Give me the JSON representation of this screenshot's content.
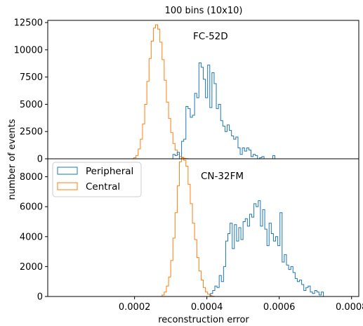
{
  "chart_data": {
    "type": "histogram",
    "title": "100 bins (10x10)",
    "xlabel": "reconstruction error",
    "ylabel": "number of events",
    "xlim": [
      -4e-05,
      0.00082
    ],
    "xticks": [
      0.0002,
      0.0004,
      0.0006,
      0.0008
    ],
    "xtick_labels": [
      "0.0002",
      "0.0004",
      "0.0006",
      "0.0008"
    ],
    "grid": false,
    "legend": {
      "placement": "top-left of lower panel",
      "entries": [
        {
          "name": "Peripheral",
          "color": "#1f77b4"
        },
        {
          "name": "Central",
          "color": "#ff7f0e"
        }
      ]
    },
    "bin_width": 6e-06,
    "panels": [
      {
        "label": "FC-52D",
        "ylim": [
          0,
          12700
        ],
        "yticks": [
          0,
          2500,
          5000,
          7500,
          10000,
          12500
        ],
        "series": [
          {
            "name": "Peripheral",
            "color": "#1f77b4",
            "x0": 0.000306,
            "values": [
              400,
              300,
              600,
              0,
              1600,
              1800,
              4800,
              4600,
              3800,
              4000,
              6000,
              5600,
              8800,
              8400,
              7300,
              5600,
              8600,
              4700,
              7900,
              6900,
              4600,
              5000,
              3500,
              3000,
              2500,
              3100,
              2600,
              2100,
              1800,
              2000,
              1000,
              400,
              1000,
              700,
              1000,
              800,
              200,
              400,
              300,
              0,
              100,
              200,
              0,
              0,
              0,
              0,
              300,
              0
            ]
          },
          {
            "name": "Central",
            "color": "#ff7f0e",
            "x0": 0.000198,
            "values": [
              100,
              300,
              900,
              1800,
              3200,
              5000,
              7100,
              9200,
              10800,
              12000,
              12300,
              11900,
              10700,
              9100,
              7200,
              5200,
              3700,
              2400,
              1400,
              800,
              400,
              200,
              100,
              40,
              20
            ]
          }
        ]
      },
      {
        "label": "CN-32FM",
        "ylim": [
          0,
          9200
        ],
        "yticks": [
          0,
          2000,
          4000,
          6000,
          8000
        ],
        "series": [
          {
            "name": "Peripheral",
            "color": "#1f77b4",
            "x0": 0.00041,
            "values": [
              200,
              400,
              700,
              600,
              1400,
              1000,
              2000,
              3700,
              4200,
              4900,
              3200,
              4800,
              3700,
              4600,
              3800,
              5000,
              5200,
              4700,
              5500,
              5300,
              6200,
              6000,
              6400,
              4700,
              5800,
              4500,
              3400,
              4900,
              4200,
              3700,
              4000,
              3400,
              5600,
              2300,
              2800,
              2100,
              1800,
              2000,
              1600,
              1200,
              1000,
              1100,
              800,
              400,
              600,
              700,
              300,
              200,
              400,
              300,
              100,
              300
            ]
          },
          {
            "name": "Central",
            "color": "#ff7f0e",
            "x0": 0.000276,
            "values": [
              100,
              300,
              700,
              1300,
              2400,
              3900,
              5600,
              7400,
              9000,
              9300,
              9100,
              8700,
              7500,
              6200,
              4900,
              3800,
              2600,
              1700,
              1100,
              600,
              300,
              150,
              60,
              20
            ]
          }
        ]
      }
    ]
  }
}
